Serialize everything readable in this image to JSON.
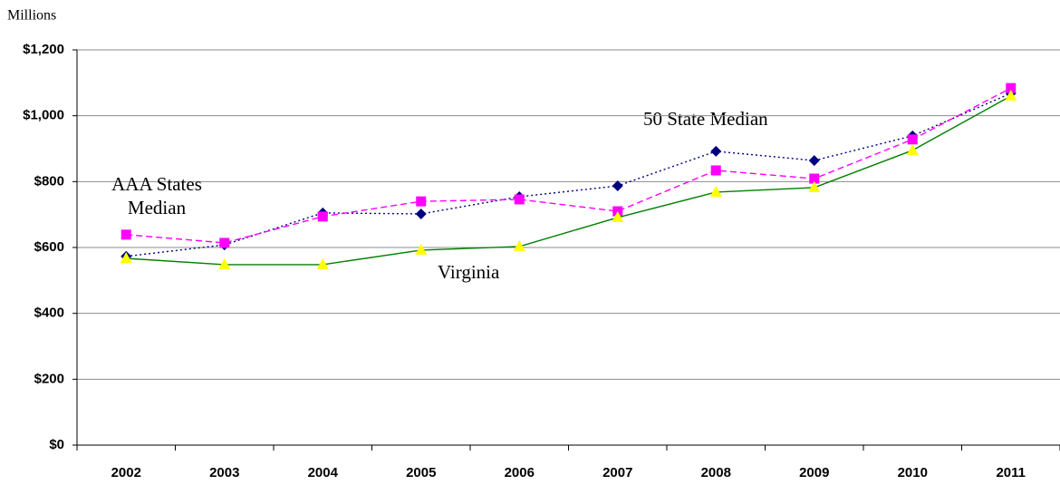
{
  "chart_data": {
    "type": "line",
    "unit_label": "Millions",
    "categories": [
      "2002",
      "2003",
      "2004",
      "2005",
      "2006",
      "2007",
      "2008",
      "2009",
      "2010",
      "2011"
    ],
    "series": [
      {
        "name": "50 State Median",
        "color": "#000080",
        "line_color": "#000080",
        "dash": "dotted",
        "marker": "diamond",
        "values": [
          573,
          608,
          705,
          702,
          754,
          787,
          892,
          864,
          939,
          1068
        ]
      },
      {
        "name": "AAA States Median",
        "color": "#ff00ff",
        "line_color": "#ff00ff",
        "dash": "dashed",
        "marker": "square",
        "values": [
          639,
          614,
          694,
          740,
          746,
          710,
          834,
          809,
          928,
          1084
        ]
      },
      {
        "name": "Virginia",
        "color": "#ffff00",
        "line_color": "#008000",
        "dash": "solid",
        "marker": "triangle",
        "values": [
          567,
          548,
          548,
          592,
          603,
          691,
          768,
          782,
          895,
          1060
        ]
      }
    ],
    "ylim": [
      0,
      1200
    ],
    "yticks": [
      {
        "value": 0,
        "label": "$0"
      },
      {
        "value": 200,
        "label": "$200"
      },
      {
        "value": 400,
        "label": "$400"
      },
      {
        "value": 600,
        "label": "$600"
      },
      {
        "value": 800,
        "label": "$800"
      },
      {
        "value": 1000,
        "label": "$1,000"
      },
      {
        "value": 1200,
        "label": "$1,200"
      }
    ],
    "grid": true
  }
}
